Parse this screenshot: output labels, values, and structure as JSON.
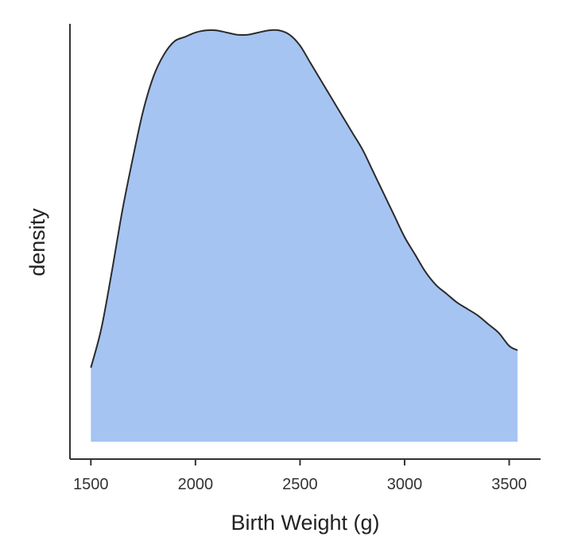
{
  "chart_data": {
    "type": "area",
    "title": "",
    "xlabel": "Birth Weight (g)",
    "ylabel": "density",
    "xlim": [
      1400,
      3650
    ],
    "ylim": [
      0,
      1.0
    ],
    "xticks": [
      "1500",
      "2000",
      "2500",
      "3000",
      "3500"
    ],
    "yticks": [],
    "grid": false,
    "legend": "none",
    "fill_color": "#a6c4f2",
    "line_color": "#2b2b2b",
    "axis_color": "#333333",
    "baseline": 0.04,
    "x": [
      1500,
      1550,
      1600,
      1650,
      1700,
      1750,
      1800,
      1850,
      1900,
      1950,
      2000,
      2050,
      2100,
      2150,
      2200,
      2250,
      2300,
      2350,
      2400,
      2450,
      2500,
      2550,
      2600,
      2650,
      2700,
      2750,
      2800,
      2850,
      2900,
      2950,
      3000,
      3050,
      3100,
      3150,
      3200,
      3250,
      3300,
      3350,
      3400,
      3450,
      3500,
      3540
    ],
    "values": [
      0.21,
      0.3,
      0.43,
      0.57,
      0.69,
      0.8,
      0.88,
      0.93,
      0.96,
      0.97,
      0.98,
      0.985,
      0.985,
      0.98,
      0.975,
      0.975,
      0.98,
      0.985,
      0.985,
      0.975,
      0.95,
      0.91,
      0.87,
      0.83,
      0.79,
      0.75,
      0.71,
      0.66,
      0.61,
      0.56,
      0.51,
      0.47,
      0.43,
      0.4,
      0.38,
      0.36,
      0.345,
      0.33,
      0.31,
      0.29,
      0.26,
      0.25
    ]
  }
}
